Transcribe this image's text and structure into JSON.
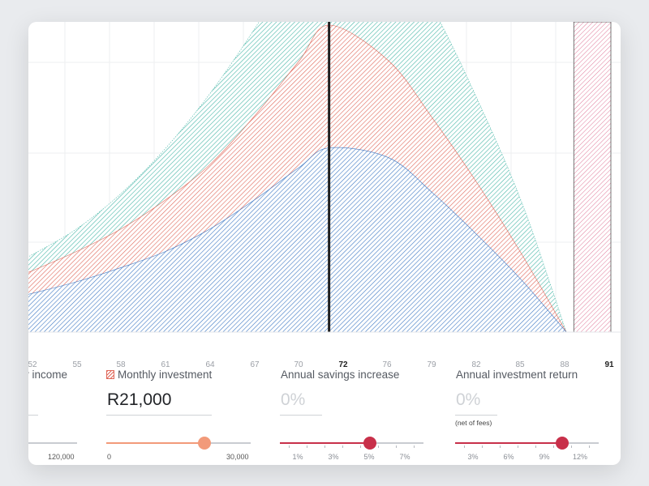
{
  "colors": {
    "teal": "#49b7a8",
    "salmon": "#e0685a",
    "blue": "#3f79c4",
    "crimson": "#c8304a",
    "orange": "#f29a7a",
    "pink": "#e07a9a"
  },
  "chart_data": {
    "type": "area",
    "x_ticks": [
      "52",
      "55",
      "58",
      "61",
      "64",
      "67",
      "70",
      "72",
      "76",
      "79",
      "82",
      "85",
      "88",
      "91"
    ],
    "highlight_ticks": [
      "72",
      "91"
    ],
    "x": [
      52,
      55,
      58,
      61,
      64,
      67,
      70,
      72,
      76,
      79,
      82,
      85,
      88
    ],
    "series": [
      {
        "color": "teal",
        "values": [
          120,
          160,
          215,
          285,
          370,
          470,
          580,
          650,
          600,
          500,
          360,
          200,
          0
        ]
      },
      {
        "color": "salmon",
        "values": [
          95,
          125,
          160,
          205,
          260,
          335,
          420,
          475,
          420,
          330,
          230,
          120,
          0
        ]
      },
      {
        "color": "blue",
        "values": [
          60,
          78,
          100,
          125,
          160,
          205,
          255,
          285,
          270,
          215,
          150,
          80,
          0
        ]
      }
    ],
    "vertical_marker_x": 72,
    "shaded_band_x": [
      88.5,
      91
    ],
    "grid": true
  },
  "controls": [
    {
      "label": "y income",
      "value": "",
      "slider_min_label": "",
      "slider_max_label": "120,000"
    },
    {
      "label": "Monthly investment",
      "value": "R21,000",
      "slider_min_label": "0",
      "slider_max_label": "30,000",
      "level": 0.68
    },
    {
      "label": "Annual savings increase",
      "value": "0%",
      "ticks": [
        "1%",
        "3%",
        "5%",
        "7%"
      ],
      "level": 0.63
    },
    {
      "label": "Annual investment return",
      "value": "0%",
      "note": "(net of fees)",
      "ticks": [
        "3%",
        "6%",
        "9%",
        "12%"
      ],
      "level": 0.75
    }
  ]
}
